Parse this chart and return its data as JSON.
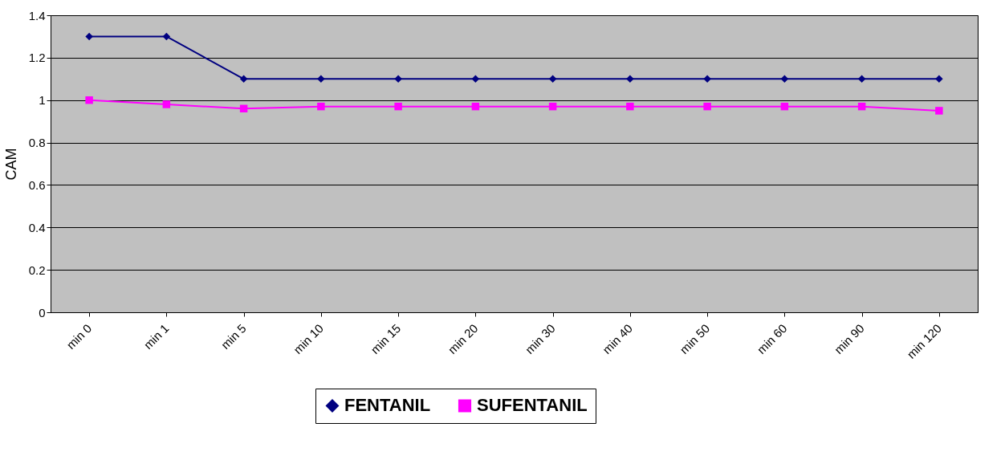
{
  "chart_data": {
    "type": "line",
    "ylabel": "CAM",
    "categories": [
      "min 0",
      "min 1",
      "min 5",
      "min 10",
      "min 15",
      "min 20",
      "min 30",
      "min 40",
      "min 50",
      "min 60",
      "min 90",
      "min 120"
    ],
    "series": [
      {
        "name": "FENTANIL",
        "color": "#000080",
        "marker": "diamond",
        "values": [
          1.3,
          1.3,
          1.1,
          1.1,
          1.1,
          1.1,
          1.1,
          1.1,
          1.1,
          1.1,
          1.1,
          1.1
        ]
      },
      {
        "name": "SUFENTANIL",
        "color": "#ff00ff",
        "marker": "square",
        "values": [
          1.0,
          0.98,
          0.96,
          0.97,
          0.97,
          0.97,
          0.97,
          0.97,
          0.97,
          0.97,
          0.97,
          0.95
        ]
      }
    ],
    "ylim": [
      0,
      1.4
    ],
    "yticks": [
      0,
      0.2,
      0.4,
      0.6,
      0.8,
      1,
      1.2,
      1.4
    ],
    "grid": "y",
    "legend": "bottom",
    "line_style": "solid"
  }
}
